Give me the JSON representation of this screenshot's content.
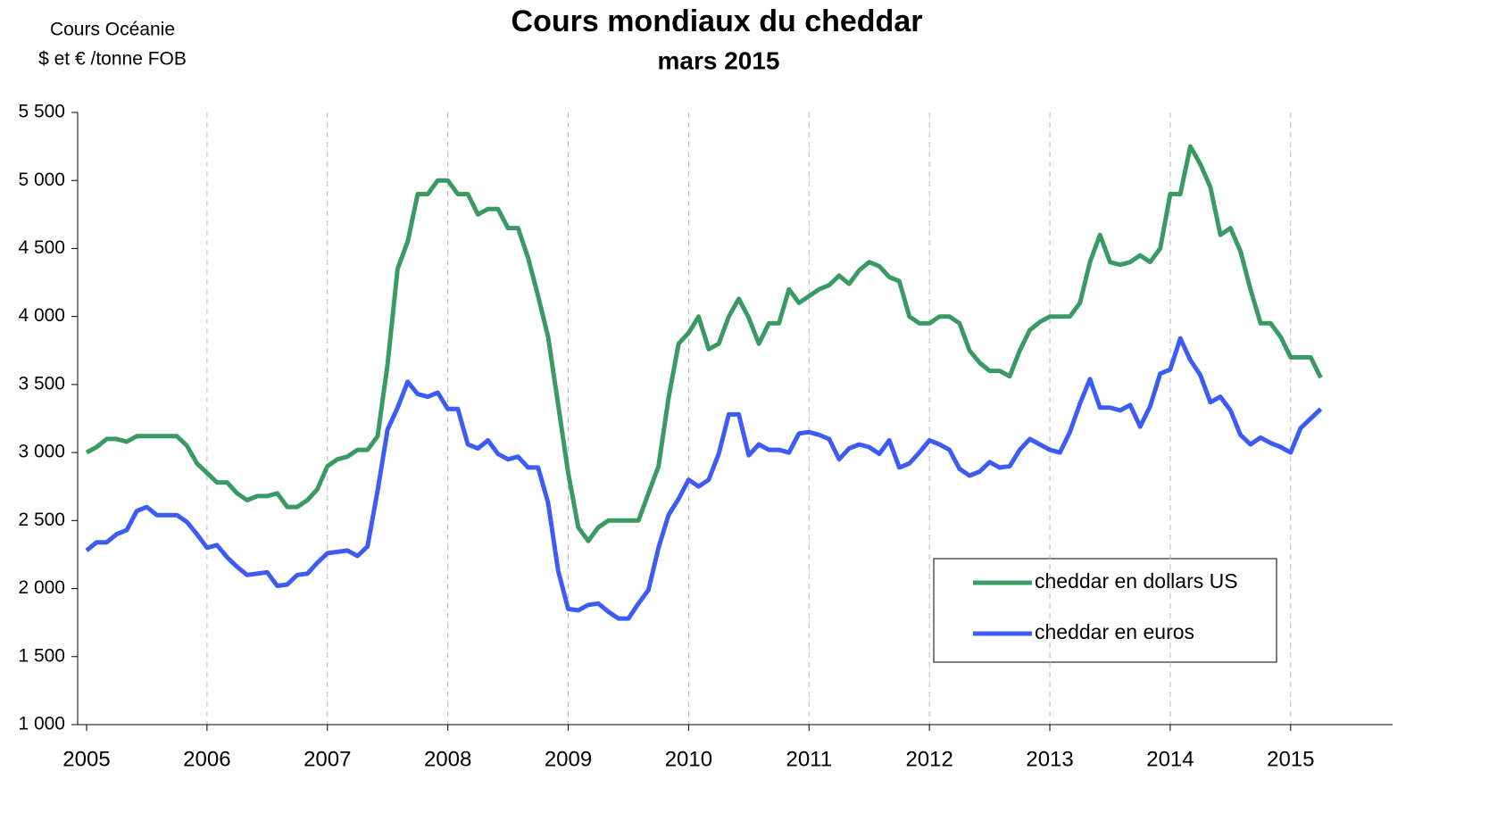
{
  "chart_data": {
    "type": "line",
    "title": "Cours mondiaux du cheddar",
    "subtitle": "mars 2015",
    "y_label": [
      "Cours Océanie",
      "$ et € /tonne FOB"
    ],
    "categories": [
      "2005",
      null,
      null,
      null,
      null,
      null,
      null,
      null,
      null,
      null,
      null,
      null,
      "2006",
      null,
      null,
      null,
      null,
      null,
      null,
      null,
      null,
      null,
      null,
      null,
      "2007",
      null,
      null,
      null,
      null,
      null,
      null,
      null,
      null,
      null,
      null,
      null,
      "2008",
      null,
      null,
      null,
      null,
      null,
      null,
      null,
      null,
      null,
      null,
      null,
      "2009",
      null,
      null,
      null,
      null,
      null,
      null,
      null,
      null,
      null,
      null,
      null,
      "2010",
      null,
      null,
      null,
      null,
      null,
      null,
      null,
      null,
      null,
      null,
      null,
      "2011",
      null,
      null,
      null,
      null,
      null,
      null,
      null,
      null,
      null,
      null,
      null,
      "2012",
      null,
      null,
      null,
      null,
      null,
      null,
      null,
      null,
      null,
      null,
      null,
      "2013",
      null,
      null,
      null,
      null,
      null,
      null,
      null,
      null,
      null,
      null,
      null,
      "2014",
      null,
      null,
      null,
      null,
      null,
      null,
      null,
      null,
      null,
      null,
      null,
      "2015",
      null,
      null,
      null
    ],
    "series": [
      {
        "name": "cheddar en dollars US",
        "color": "#3a9a63",
        "values": [
          3000,
          3040,
          3100,
          3100,
          3080,
          3120,
          3120,
          3120,
          3120,
          3120,
          3050,
          2920,
          2850,
          2780,
          2780,
          2700,
          2650,
          2680,
          2680,
          2700,
          2600,
          2600,
          2650,
          2730,
          2900,
          2950,
          2970,
          3020,
          3020,
          3120,
          3650,
          4350,
          4550,
          4900,
          4900,
          5000,
          5000,
          4900,
          4900,
          4750,
          4790,
          4790,
          4650,
          4650,
          4430,
          4150,
          3850,
          3350,
          2850,
          2450,
          2350,
          2450,
          2500,
          2500,
          2500,
          2500,
          2700,
          2900,
          3400,
          3800,
          3880,
          4000,
          3760,
          3800,
          4000,
          4130,
          3990,
          3800,
          3950,
          3950,
          4200,
          4100,
          4150,
          4200,
          4230,
          4300,
          4240,
          4340,
          4400,
          4370,
          4290,
          4260,
          4000,
          3950,
          3950,
          4000,
          4000,
          3950,
          3750,
          3660,
          3600,
          3600,
          3560,
          3750,
          3900,
          3960,
          4000,
          4000,
          4000,
          4100,
          4400,
          4600,
          4400,
          4380,
          4400,
          4450,
          4400,
          4500,
          4900,
          4900,
          5250,
          5120,
          4950,
          4600,
          4650,
          4480,
          4200,
          3950,
          3950,
          3850,
          3700,
          3700,
          3700,
          3550
        ]
      },
      {
        "name": "cheddar en euros",
        "color": "#3c5cf5",
        "values": [
          2280,
          2340,
          2340,
          2400,
          2430,
          2570,
          2600,
          2540,
          2540,
          2540,
          2490,
          2400,
          2300,
          2320,
          2230,
          2160,
          2100,
          2110,
          2120,
          2020,
          2030,
          2100,
          2110,
          2190,
          2260,
          2270,
          2280,
          2240,
          2310,
          2720,
          3170,
          3330,
          3520,
          3430,
          3410,
          3440,
          3320,
          3320,
          3060,
          3030,
          3090,
          2990,
          2950,
          2970,
          2890,
          2890,
          2630,
          2130,
          1850,
          1840,
          1880,
          1890,
          1830,
          1780,
          1780,
          1890,
          1990,
          2300,
          2540,
          2660,
          2800,
          2750,
          2800,
          2990,
          3280,
          3280,
          2980,
          3060,
          3020,
          3020,
          3000,
          3140,
          3150,
          3130,
          3100,
          2950,
          3030,
          3060,
          3040,
          2990,
          3090,
          2890,
          2920,
          3000,
          3090,
          3060,
          3020,
          2880,
          2830,
          2860,
          2930,
          2890,
          2900,
          3020,
          3100,
          3060,
          3020,
          3000,
          3150,
          3360,
          3540,
          3330,
          3330,
          3310,
          3350,
          3190,
          3340,
          3580,
          3610,
          3840,
          3680,
          3570,
          3370,
          3410,
          3310,
          3130,
          3060,
          3110,
          3070,
          3040,
          3000,
          3180,
          3250,
          3320
        ]
      }
    ],
    "ylim": [
      1000,
      5500
    ],
    "yticks": [
      {
        "value": 1000,
        "label": "1 000"
      },
      {
        "value": 1500,
        "label": "1 500"
      },
      {
        "value": 2000,
        "label": "2 000"
      },
      {
        "value": 2500,
        "label": "2 500"
      },
      {
        "value": 3000,
        "label": "3 000"
      },
      {
        "value": 3500,
        "label": "3 500"
      },
      {
        "value": 4000,
        "label": "4 000"
      },
      {
        "value": 4500,
        "label": "4 500"
      },
      {
        "value": 5000,
        "label": "5 000"
      },
      {
        "value": 5500,
        "label": "5 500"
      }
    ],
    "grid": "x"
  }
}
